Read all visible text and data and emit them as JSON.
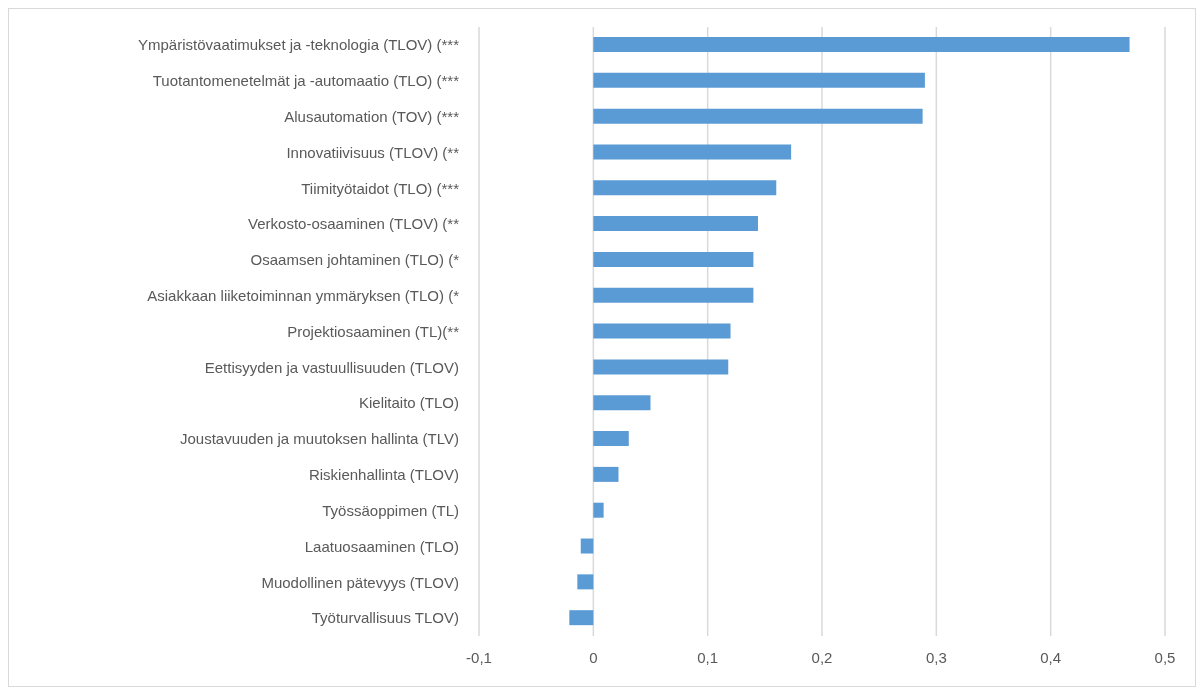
{
  "chart_data": {
    "type": "bar",
    "orientation": "horizontal",
    "categories": [
      "Ympäristövaatimukset ja -teknologia (TLOV) (***",
      "Tuotantomenetelmät ja -automaatio (TLO) (***",
      "Alusautomation (TOV) (***",
      "Innovatiivisuus (TLOV) (**",
      "Tiimityötaidot (TLO) (***",
      "Verkosto-osaaminen (TLOV) (**",
      "Osaamsen johtaminen (TLO) (*",
      "Asiakkaan liiketoiminnan ymmäryksen (TLO) (*",
      "Projektiosaaminen (TL)(**",
      "Eettisyyden ja vastuullisuuden (TLOV)",
      "Kielitaito (TLO)",
      "Joustavuuden ja muutoksen hallinta (TLV)",
      "Riskienhallinta (TLOV)",
      "Työssäoppimen (TL)",
      "Laatuosaaminen (TLO)",
      "Muodollinen pätevyys (TLOV)",
      "Työturvallisuus TLOV)"
    ],
    "values": [
      0.469,
      0.29,
      0.288,
      0.173,
      0.16,
      0.144,
      0.14,
      0.14,
      0.12,
      0.118,
      0.05,
      0.031,
      0.022,
      0.009,
      -0.011,
      -0.014,
      -0.021
    ],
    "color": "#5b9bd5",
    "xlim": [
      -0.1,
      0.5
    ],
    "xticks": [
      {
        "value": -0.1,
        "label": "-0,1"
      },
      {
        "value": 0,
        "label": "0"
      },
      {
        "value": 0.1,
        "label": "0,1"
      },
      {
        "value": 0.2,
        "label": "0,2"
      },
      {
        "value": 0.3,
        "label": "0,3"
      },
      {
        "value": 0.4,
        "label": "0,4"
      },
      {
        "value": 0.5,
        "label": "0,5"
      }
    ],
    "grid": "x",
    "legend": false
  }
}
